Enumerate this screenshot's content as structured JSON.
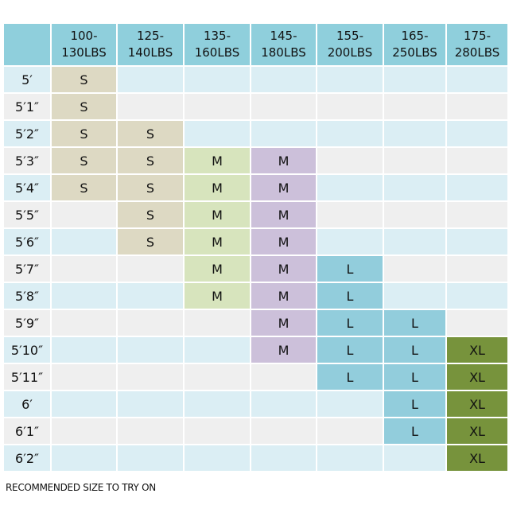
{
  "columns": [
    "",
    "100-\n130LBS",
    "125-\n140LBS",
    "135-\n160LBS",
    "145-\n180LBS",
    "155-\n200LBS",
    "165-\n250LBS",
    "175-\n280LBS"
  ],
  "size_colors": {
    "S": "#ddd9c3",
    "M1": "#d7e4bd",
    "M2": "#ccc0da",
    "L1": "#92cddc",
    "L2": "#8db4e2",
    "XL": "#77933c"
  },
  "rows": [
    {
      "height": "5′",
      "cells": [
        "S",
        "",
        "",
        "",
        "",
        "",
        ""
      ]
    },
    {
      "height": "5′1″",
      "cells": [
        "S",
        "",
        "",
        "",
        "",
        "",
        ""
      ]
    },
    {
      "height": "5′2″",
      "cells": [
        "S",
        "S",
        "",
        "",
        "",
        "",
        ""
      ]
    },
    {
      "height": "5′3″",
      "cells": [
        "S",
        "S",
        "M",
        "M",
        "",
        "",
        ""
      ]
    },
    {
      "height": "5′4″",
      "cells": [
        "S",
        "S",
        "M",
        "M",
        "",
        "",
        ""
      ]
    },
    {
      "height": "5′5″",
      "cells": [
        "",
        "S",
        "M",
        "M",
        "",
        "",
        ""
      ]
    },
    {
      "height": "5′6″",
      "cells": [
        "",
        "S",
        "M",
        "M",
        "",
        "",
        ""
      ]
    },
    {
      "height": "5′7″",
      "cells": [
        "",
        "",
        "M",
        "M",
        "L",
        "",
        ""
      ]
    },
    {
      "height": "5′8″",
      "cells": [
        "",
        "",
        "M",
        "M",
        "L",
        "",
        ""
      ]
    },
    {
      "height": "5′9″",
      "cells": [
        "",
        "",
        "",
        "M",
        "L",
        "L",
        ""
      ]
    },
    {
      "height": "5′10″",
      "cells": [
        "",
        "",
        "",
        "M",
        "L",
        "L",
        "XL"
      ]
    },
    {
      "height": "5′11″",
      "cells": [
        "",
        "",
        "",
        "",
        "L",
        "L",
        "XL"
      ]
    },
    {
      "height": "6′",
      "cells": [
        "",
        "",
        "",
        "",
        "",
        "L",
        "XL"
      ]
    },
    {
      "height": "6′1″",
      "cells": [
        "",
        "",
        "",
        "",
        "",
        "L",
        "XL"
      ]
    },
    {
      "height": "6′2″",
      "cells": [
        "",
        "",
        "",
        "",
        "",
        "",
        "XL"
      ]
    }
  ],
  "caption": "RECOMMENDED SIZE TO TRY ON"
}
